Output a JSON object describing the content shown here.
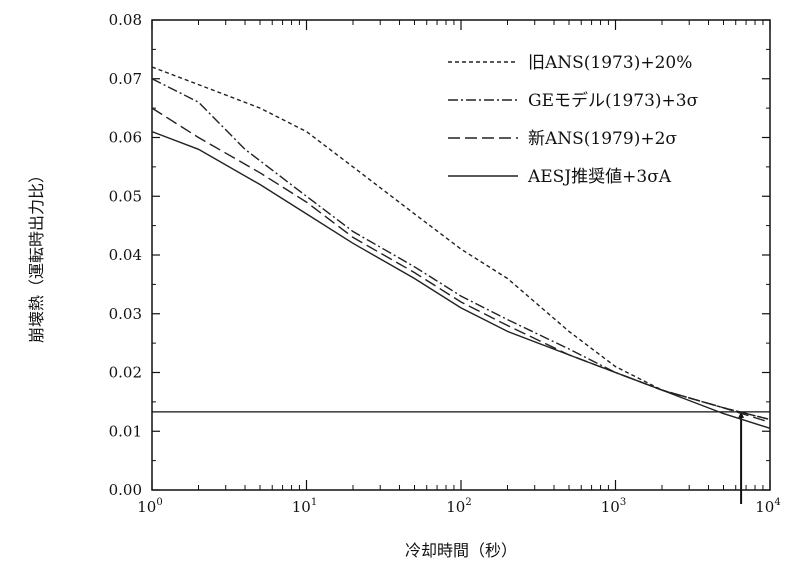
{
  "chart_data": {
    "type": "line",
    "xlabel": "冷却時間（秒）",
    "ylabel": "崩壊熱（運転時出力比）",
    "xscale": "log",
    "xlim": [
      1,
      10000
    ],
    "ylim": [
      0,
      0.08
    ],
    "x_ticks": [
      1,
      10,
      100,
      1000,
      10000
    ],
    "x_tick_labels": [
      {
        "base": "10",
        "exp": "0"
      },
      {
        "base": "10",
        "exp": "1"
      },
      {
        "base": "10",
        "exp": "2"
      },
      {
        "base": "10",
        "exp": "3"
      },
      {
        "base": "10",
        "exp": "4"
      }
    ],
    "y_ticks": [
      0,
      0.01,
      0.02,
      0.03,
      0.04,
      0.05,
      0.06,
      0.07,
      0.08
    ],
    "y_tick_labels": [
      "0.00",
      "0.01",
      "0.02",
      "0.03",
      "0.04",
      "0.05",
      "0.06",
      "0.07",
      "0.08"
    ],
    "grid": false,
    "legend_position": "top-right",
    "series": [
      {
        "name": "旧ANS(1973)+20%",
        "dash": "short-dash",
        "color": "#222222",
        "points": [
          [
            1,
            0.072
          ],
          [
            2,
            0.069
          ],
          [
            5,
            0.065
          ],
          [
            10,
            0.061
          ],
          [
            20,
            0.055
          ],
          [
            50,
            0.047
          ],
          [
            100,
            0.041
          ],
          [
            200,
            0.036
          ],
          [
            500,
            0.027
          ],
          [
            1000,
            0.021
          ],
          [
            2000,
            0.017
          ],
          [
            5000,
            0.014
          ],
          [
            10000,
            0.012
          ]
        ]
      },
      {
        "name": "GEモデル(1973)+3σ",
        "dash": "dash-dot",
        "color": "#222222",
        "points": [
          [
            1,
            0.07
          ],
          [
            2,
            0.066
          ],
          [
            4,
            0.058
          ],
          [
            10,
            0.05
          ],
          [
            20,
            0.044
          ],
          [
            50,
            0.038
          ],
          [
            100,
            0.033
          ],
          [
            200,
            0.029
          ],
          [
            500,
            0.024
          ],
          [
            1000,
            0.02
          ],
          [
            2000,
            0.017
          ],
          [
            5000,
            0.014
          ],
          [
            10000,
            0.012
          ]
        ]
      },
      {
        "name": "新ANS(1979)+2σ",
        "dash": "long-dash",
        "color": "#222222",
        "points": [
          [
            1,
            0.065
          ],
          [
            2,
            0.06
          ],
          [
            5,
            0.054
          ],
          [
            10,
            0.049
          ],
          [
            20,
            0.043
          ],
          [
            50,
            0.037
          ],
          [
            100,
            0.032
          ],
          [
            200,
            0.028
          ],
          [
            500,
            0.023
          ],
          [
            1000,
            0.02
          ],
          [
            2000,
            0.017
          ],
          [
            5000,
            0.014
          ],
          [
            10000,
            0.0115
          ]
        ]
      },
      {
        "name": "AESJ推奨値+3σA",
        "dash": "solid",
        "color": "#222222",
        "points": [
          [
            1,
            0.061
          ],
          [
            2,
            0.058
          ],
          [
            5,
            0.052
          ],
          [
            10,
            0.047
          ],
          [
            20,
            0.042
          ],
          [
            50,
            0.036
          ],
          [
            100,
            0.031
          ],
          [
            200,
            0.027
          ],
          [
            500,
            0.023
          ],
          [
            1000,
            0.02
          ],
          [
            2000,
            0.017
          ],
          [
            5000,
            0.013
          ],
          [
            10000,
            0.0105
          ]
        ]
      }
    ],
    "reference_lines": [
      {
        "orientation": "horizontal",
        "value": 0.0133
      },
      {
        "orientation": "vertical",
        "value": 6500,
        "from": 0,
        "to": 0.0133
      }
    ]
  }
}
